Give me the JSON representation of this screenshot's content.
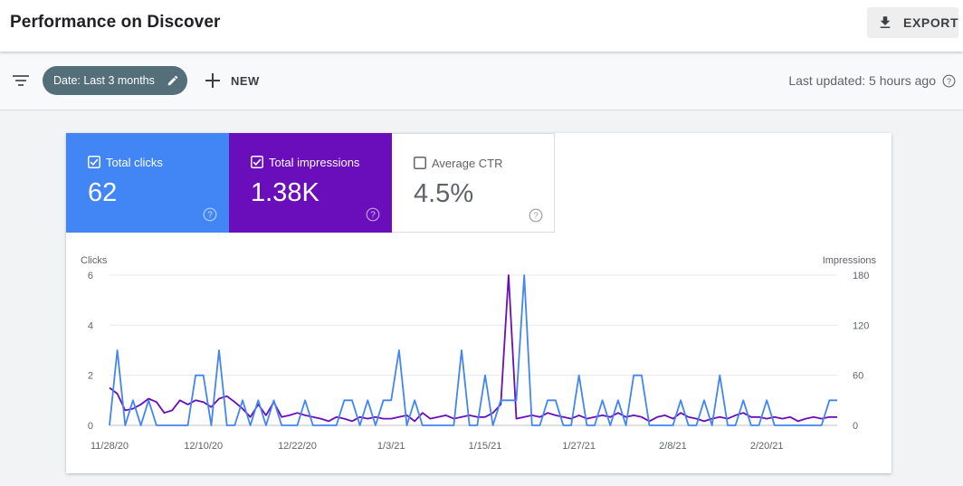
{
  "header": {
    "title": "Performance on Discover",
    "export_label": "EXPORT"
  },
  "filters": {
    "date_chip_label": "Date: Last 3 months",
    "new_label": "NEW",
    "last_updated": "Last updated: 5 hours ago"
  },
  "metrics": [
    {
      "name": "Total clicks",
      "value": "62",
      "checked": true,
      "color": "#4285f4"
    },
    {
      "name": "Total impressions",
      "value": "1.38K",
      "checked": true,
      "color": "#6a0dba"
    },
    {
      "name": "Average CTR",
      "value": "4.5%",
      "checked": false,
      "color": "#ffffff"
    }
  ],
  "chart_data": {
    "type": "line",
    "y_left_label": "Clicks",
    "y_right_label": "Impressions",
    "y_left_ticks": [
      "0",
      "2",
      "4",
      "6"
    ],
    "y_right_ticks": [
      "0",
      "60",
      "120",
      "180"
    ],
    "y_left_range": [
      0,
      6
    ],
    "y_right_range": [
      0,
      180
    ],
    "x_ticks": [
      "11/28/20",
      "12/10/20",
      "12/22/20",
      "1/3/21",
      "1/15/21",
      "1/27/21",
      "2/8/21",
      "2/20/21"
    ],
    "x_tick_index": [
      0,
      12,
      24,
      36,
      48,
      60,
      72,
      84
    ],
    "grid": true,
    "series": [
      {
        "name": "Clicks",
        "axis": "left",
        "color": "#4285f4",
        "values": [
          0,
          3,
          0,
          1,
          0,
          1,
          0,
          0,
          0,
          0,
          0,
          2,
          2,
          0,
          3,
          0,
          0,
          1,
          0,
          1,
          0,
          1,
          0,
          0,
          0,
          1,
          0,
          0,
          0,
          0,
          1,
          1,
          0,
          1,
          0,
          1,
          1,
          3,
          0,
          1,
          0,
          0,
          0,
          0,
          0,
          3,
          0,
          0,
          2,
          0,
          1,
          1,
          1,
          6,
          0,
          0,
          1,
          1,
          0,
          0,
          2,
          0,
          0,
          1,
          0,
          1,
          0,
          2,
          2,
          0,
          0,
          0,
          0,
          1,
          0,
          0,
          1,
          0,
          2,
          0,
          0,
          1,
          0,
          0,
          1,
          0,
          0,
          0,
          0,
          0,
          0,
          0,
          1,
          1
        ]
      },
      {
        "name": "Impressions",
        "axis": "right",
        "color": "#6a0dba",
        "values": [
          45,
          38,
          18,
          20,
          25,
          32,
          28,
          15,
          18,
          30,
          25,
          30,
          28,
          22,
          32,
          35,
          28,
          20,
          10,
          25,
          12,
          28,
          10,
          12,
          15,
          12,
          10,
          8,
          5,
          10,
          8,
          5,
          10,
          8,
          10,
          8,
          8,
          10,
          12,
          5,
          15,
          8,
          10,
          12,
          8,
          10,
          12,
          10,
          10,
          15,
          25,
          180,
          8,
          10,
          12,
          10,
          15,
          12,
          10,
          8,
          12,
          8,
          10,
          12,
          10,
          15,
          10,
          12,
          10,
          5,
          10,
          12,
          8,
          15,
          10,
          8,
          5,
          8,
          10,
          8,
          12,
          15,
          10,
          10,
          8,
          10,
          8,
          10,
          5,
          8,
          10,
          8,
          10,
          10
        ]
      }
    ]
  }
}
